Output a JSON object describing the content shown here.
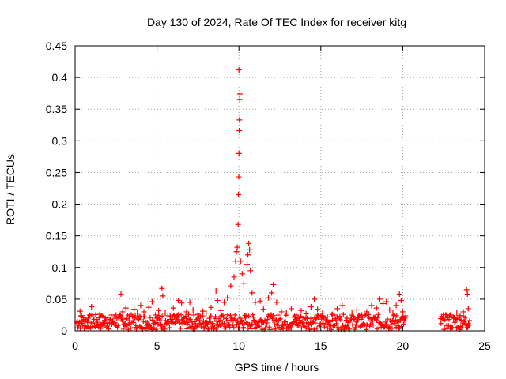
{
  "chart_data": {
    "type": "scatter",
    "title": "Day 130 of 2024, Rate Of TEC Index for receiver kitg",
    "xlabel": "GPS time / hours",
    "ylabel": "ROTI / TECUs",
    "xlim": [
      0,
      25
    ],
    "ylim": [
      0,
      0.45
    ],
    "xticks": [
      0,
      5,
      10,
      15,
      20,
      25
    ],
    "yticks": [
      0,
      0.05,
      0.1,
      0.15,
      0.2,
      0.25,
      0.3,
      0.35,
      0.4,
      0.45
    ],
    "xtick_labels": [
      "0",
      "5",
      "10",
      "15",
      "20",
      "25"
    ],
    "ytick_labels": [
      "0",
      "0.05",
      "0.1",
      "0.15",
      "0.2",
      "0.25",
      "0.3",
      "0.35",
      "0.4",
      "0.45"
    ],
    "grid": true,
    "marker": "+",
    "color": "#ff0000",
    "series": [
      {
        "name": "ROTI",
        "points": [
          [
            0.2,
            0.012
          ],
          [
            0.3,
            0.031
          ],
          [
            0.4,
            0.024
          ],
          [
            0.6,
            0.015
          ],
          [
            0.8,
            0.02
          ],
          [
            1.0,
            0.038
          ],
          [
            1.1,
            0.022
          ],
          [
            1.3,
            0.018
          ],
          [
            1.5,
            0.026
          ],
          [
            1.7,
            0.012
          ],
          [
            2.0,
            0.021
          ],
          [
            2.3,
            0.016
          ],
          [
            2.5,
            0.025
          ],
          [
            2.8,
            0.058
          ],
          [
            2.9,
            0.03
          ],
          [
            3.1,
            0.036
          ],
          [
            3.3,
            0.022
          ],
          [
            3.6,
            0.034
          ],
          [
            3.8,
            0.028
          ],
          [
            4.0,
            0.04
          ],
          [
            4.2,
            0.03
          ],
          [
            4.5,
            0.037
          ],
          [
            4.7,
            0.046
          ],
          [
            4.9,
            0.025
          ],
          [
            5.1,
            0.032
          ],
          [
            5.3,
            0.067
          ],
          [
            5.35,
            0.055
          ],
          [
            5.5,
            0.028
          ],
          [
            5.8,
            0.022
          ],
          [
            6.0,
            0.036
          ],
          [
            6.3,
            0.048
          ],
          [
            6.5,
            0.044
          ],
          [
            6.8,
            0.03
          ],
          [
            7.0,
            0.045
          ],
          [
            7.2,
            0.033
          ],
          [
            7.5,
            0.026
          ],
          [
            7.8,
            0.031
          ],
          [
            8.0,
            0.028
          ],
          [
            8.3,
            0.037
          ],
          [
            8.6,
            0.063
          ],
          [
            8.7,
            0.048
          ],
          [
            8.9,
            0.032
          ],
          [
            9.1,
            0.045
          ],
          [
            9.3,
            0.052
          ],
          [
            9.5,
            0.071
          ],
          [
            9.7,
            0.085
          ],
          [
            9.8,
            0.11
          ],
          [
            9.85,
            0.125
          ],
          [
            9.9,
            0.132
          ],
          [
            9.95,
            0.168
          ],
          [
            9.97,
            0.215
          ],
          [
            9.99,
            0.243
          ],
          [
            10.0,
            0.28
          ],
          [
            10.02,
            0.316
          ],
          [
            10.03,
            0.333
          ],
          [
            10.05,
            0.365
          ],
          [
            10.06,
            0.374
          ],
          [
            10.0,
            0.412
          ],
          [
            10.1,
            0.11
          ],
          [
            10.2,
            0.09
          ],
          [
            10.3,
            0.075
          ],
          [
            10.5,
            0.105
          ],
          [
            10.55,
            0.12
          ],
          [
            10.6,
            0.138
          ],
          [
            10.65,
            0.128
          ],
          [
            10.7,
            0.095
          ],
          [
            10.8,
            0.06
          ],
          [
            11.0,
            0.045
          ],
          [
            11.3,
            0.047
          ],
          [
            11.5,
            0.034
          ],
          [
            11.8,
            0.052
          ],
          [
            12.0,
            0.06
          ],
          [
            12.1,
            0.073
          ],
          [
            12.3,
            0.045
          ],
          [
            12.6,
            0.03
          ],
          [
            12.9,
            0.028
          ],
          [
            13.2,
            0.035
          ],
          [
            13.5,
            0.025
          ],
          [
            13.8,
            0.032
          ],
          [
            14.1,
            0.027
          ],
          [
            14.4,
            0.038
          ],
          [
            14.6,
            0.05
          ],
          [
            14.8,
            0.034
          ],
          [
            15.1,
            0.028
          ],
          [
            15.4,
            0.022
          ],
          [
            15.7,
            0.026
          ],
          [
            16.0,
            0.035
          ],
          [
            16.3,
            0.04
          ],
          [
            16.6,
            0.02
          ],
          [
            16.9,
            0.028
          ],
          [
            17.2,
            0.033
          ],
          [
            17.5,
            0.025
          ],
          [
            17.8,
            0.03
          ],
          [
            18.1,
            0.04
          ],
          [
            18.4,
            0.036
          ],
          [
            18.6,
            0.05
          ],
          [
            18.8,
            0.043
          ],
          [
            19.0,
            0.046
          ],
          [
            19.2,
            0.033
          ],
          [
            19.4,
            0.028
          ],
          [
            19.6,
            0.04
          ],
          [
            19.8,
            0.058
          ],
          [
            19.9,
            0.048
          ],
          [
            20.0,
            0.03
          ],
          [
            22.5,
            0.018
          ],
          [
            22.7,
            0.022
          ],
          [
            22.9,
            0.025
          ],
          [
            23.1,
            0.02
          ],
          [
            23.3,
            0.028
          ],
          [
            23.5,
            0.024
          ],
          [
            23.7,
            0.03
          ],
          [
            23.9,
            0.065
          ],
          [
            23.95,
            0.058
          ],
          [
            24.0,
            0.035
          ]
        ]
      }
    ]
  }
}
